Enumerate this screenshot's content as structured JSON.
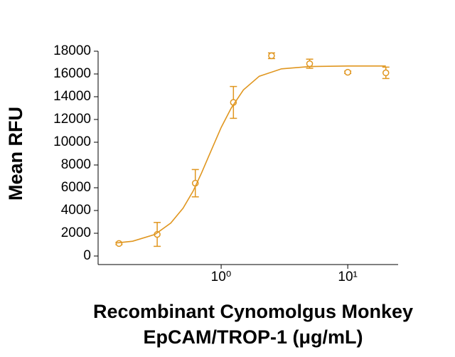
{
  "chart_data": {
    "type": "scatter",
    "ylabel": "Mean RFU",
    "xlabel": [
      "Recombinant Cynomolgus Monkey",
      "EpCAM/TROP-1 (μg/mL)"
    ],
    "xlog": true,
    "xlim": [
      0.1,
      25
    ],
    "xticks": [
      {
        "value": 1,
        "label": "10⁰"
      },
      {
        "value": 10,
        "label": "10¹"
      }
    ],
    "ylim": [
      0,
      18000
    ],
    "yticks": [
      0,
      2000,
      4000,
      6000,
      8000,
      10000,
      12000,
      14000,
      16000,
      18000
    ],
    "series": [
      {
        "color": "#e0961f",
        "x": [
          0.156,
          0.3125,
          0.625,
          1.25,
          2.5,
          5,
          10,
          20
        ],
        "values": [
          1100,
          1900,
          6400,
          13500,
          17600,
          16900,
          16150,
          16100
        ],
        "errors": [
          100,
          1050,
          1200,
          1400,
          250,
          400,
          100,
          500
        ]
      },
      {
        "type": "line",
        "color": "#e0961f",
        "x": [
          0.15,
          0.2,
          0.3,
          0.4,
          0.5,
          0.6,
          0.7,
          0.8,
          1,
          1.2,
          1.5,
          2,
          3,
          5,
          10,
          20
        ],
        "values": [
          1150,
          1300,
          1900,
          2900,
          4200,
          5700,
          7300,
          8800,
          11300,
          13000,
          14600,
          15800,
          16450,
          16650,
          16700,
          16700
        ]
      }
    ]
  }
}
